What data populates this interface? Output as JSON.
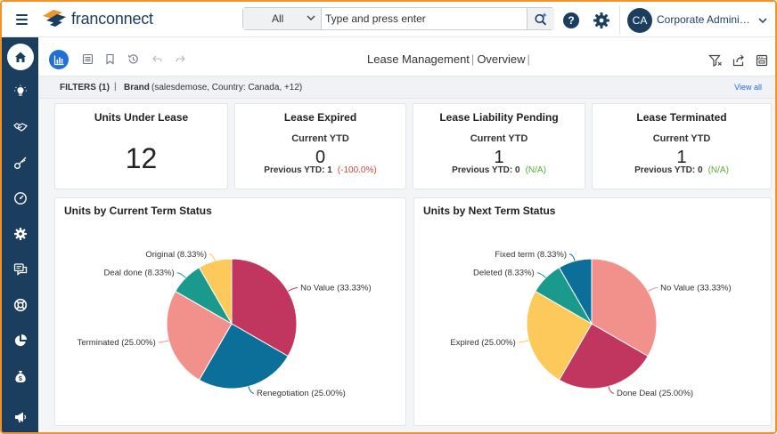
{
  "topbar": {
    "logo_text_bold": "fran",
    "logo_text_thin": "connect",
    "search_scope": "All",
    "search_placeholder": "Type and press enter",
    "help_label": "?",
    "avatar_initials": "CA",
    "user_name": "Corporate Administr..."
  },
  "sidebar": {
    "items": [
      {
        "icon": "home-icon",
        "active": true
      },
      {
        "icon": "lightbulb-icon",
        "active": false
      },
      {
        "icon": "handshake-icon",
        "active": false
      },
      {
        "icon": "key-icon",
        "active": false
      },
      {
        "icon": "gauge-icon",
        "active": false
      },
      {
        "icon": "gear-icon",
        "active": false
      },
      {
        "icon": "chat-icon",
        "active": false
      },
      {
        "icon": "lifebuoy-icon",
        "active": false
      },
      {
        "icon": "pie-icon",
        "active": false
      },
      {
        "icon": "money-bag-icon",
        "active": false
      },
      {
        "icon": "megaphone-icon",
        "active": false
      }
    ]
  },
  "toolbar": {
    "title_main": "Lease Management",
    "title_sep": "|",
    "title_sub": "Overview",
    "title_trail": "|"
  },
  "filters": {
    "label": "FILTERS (1)",
    "separator": "|",
    "brand_label": "Brand",
    "brand_value": "(salesdemose, Country: Canada, +12)",
    "view_all": "View all"
  },
  "kpis": {
    "units_under_lease": {
      "title": "Units Under Lease",
      "value": "12"
    },
    "lease_expired": {
      "title": "Lease Expired",
      "sub": "Current YTD",
      "value": "0",
      "prev_label": "Previous YTD: 1",
      "change": "(-100.0%)"
    },
    "lease_liability": {
      "title": "Lease Liability Pending",
      "sub": "Current YTD",
      "value": "1",
      "prev_label": "Previous YTD: 0",
      "change": "(N/A)"
    },
    "lease_terminated": {
      "title": "Lease Terminated",
      "sub": "Current YTD",
      "value": "1",
      "prev_label": "Previous YTD: 0",
      "change": "(N/A)"
    }
  },
  "colors": {
    "brand_navy": "#1b3d5e",
    "accent_blue": "#1f6fd6",
    "negative": "#d9443d",
    "neutral_green": "#5aa83a"
  },
  "chart_data": [
    {
      "type": "pie",
      "title": "Units by Current Term Status",
      "series": [
        {
          "name": "No Value",
          "value": 33.33,
          "label": "No Value (33.33%)",
          "color": "#c0365f"
        },
        {
          "name": "Renegotiation",
          "value": 25.0,
          "label": "Renegotiation (25.00%)",
          "color": "#0b6f99"
        },
        {
          "name": "Terminated",
          "value": 25.0,
          "label": "Terminated (25.00%)",
          "color": "#f2918c"
        },
        {
          "name": "Deal done",
          "value": 8.33,
          "label": "Deal done (8.33%)",
          "color": "#1a9a8c"
        },
        {
          "name": "Original",
          "value": 8.33,
          "label": "Original (8.33%)",
          "color": "#fdc95b"
        }
      ]
    },
    {
      "type": "pie",
      "title": "Units by Next Term Status",
      "series": [
        {
          "name": "No Value",
          "value": 33.33,
          "label": "No Value (33.33%)",
          "color": "#f2918c"
        },
        {
          "name": "Done Deal",
          "value": 25.0,
          "label": "Done Deal (25.00%)",
          "color": "#c0365f"
        },
        {
          "name": "Expired",
          "value": 25.0,
          "label": "Expired (25.00%)",
          "color": "#fdc95b"
        },
        {
          "name": "Deleted",
          "value": 8.33,
          "label": "Deleted (8.33%)",
          "color": "#1a9a8c"
        },
        {
          "name": "Fixed term",
          "value": 8.33,
          "label": "Fixed term (8.33%)",
          "color": "#0b6f99"
        }
      ]
    }
  ]
}
